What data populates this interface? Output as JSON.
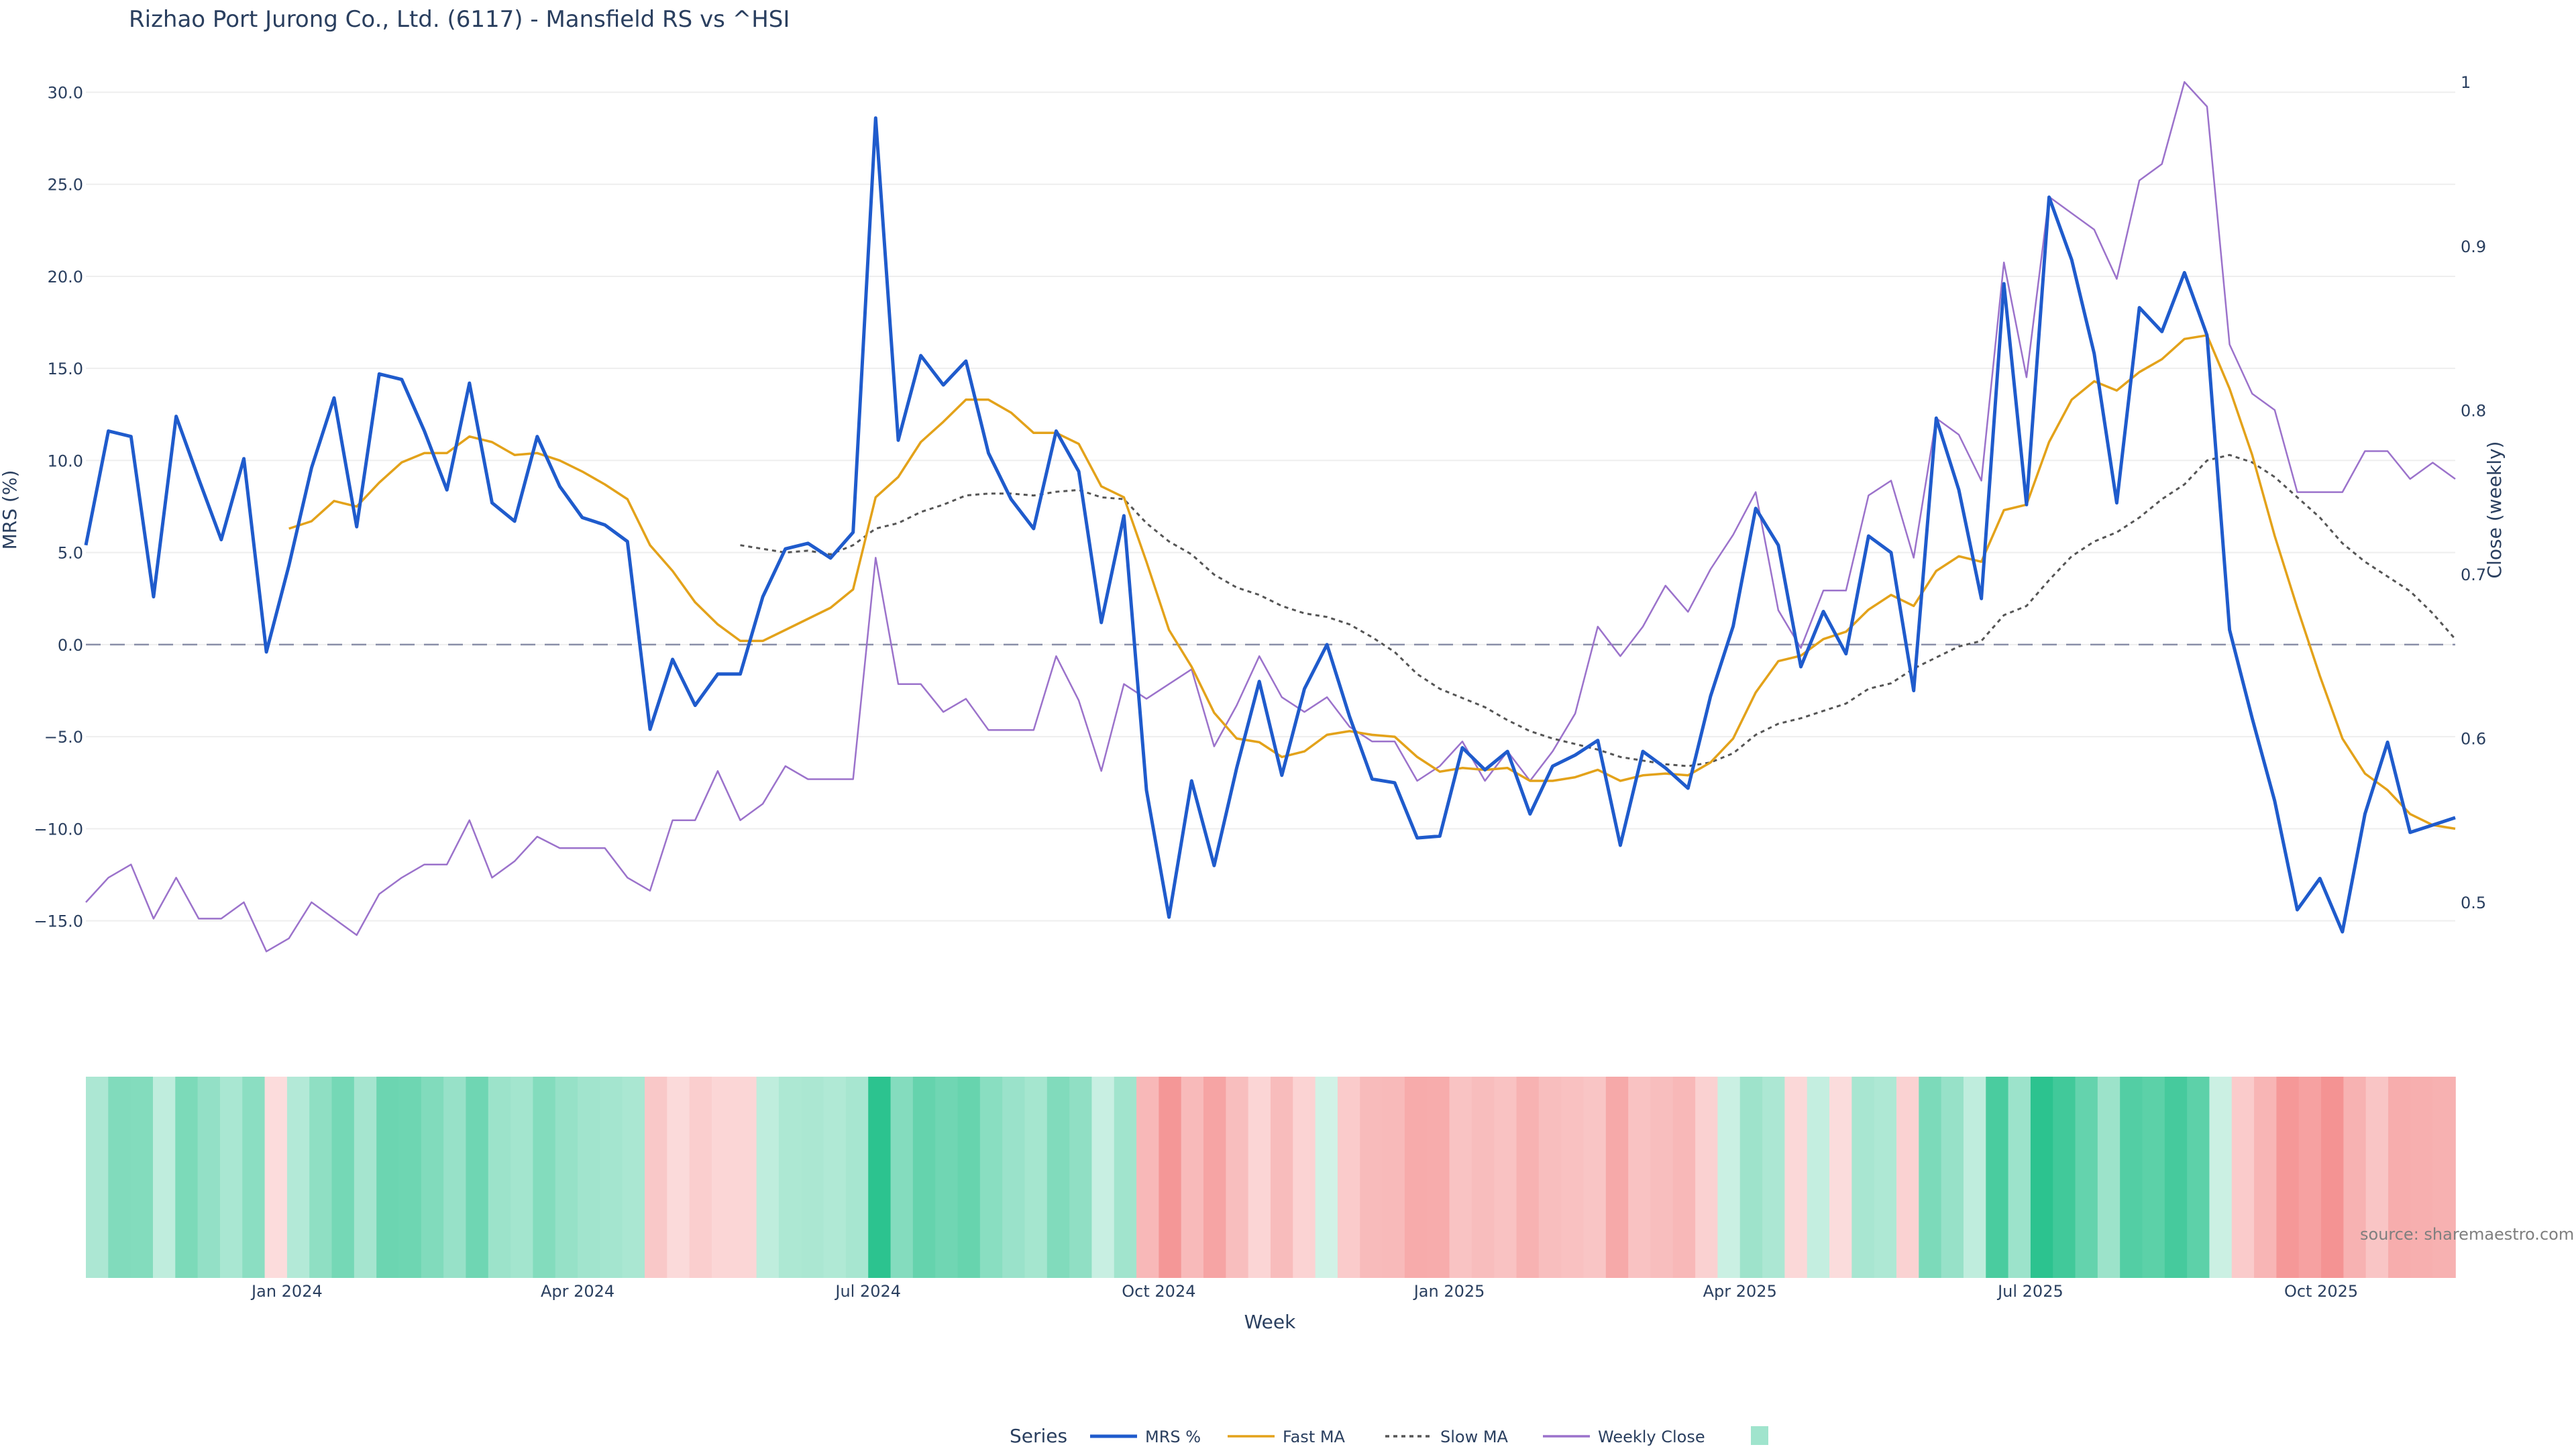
{
  "chart_data": {
    "type": "line",
    "title": "Rizhao Port Jurong Co., Ltd. (6117) - Mansfield RS vs ^HSI",
    "xlabel": "Week",
    "ylabel": "MRS (%)",
    "y2label": "Close (weekly)",
    "ylim": [
      -18.0,
      31.0
    ],
    "y2lim": [
      0.455,
      1.005
    ],
    "yticks": [
      "30.0",
      "25.0",
      "20.0",
      "15.0",
      "10.0",
      "5.0",
      "0.0",
      "−5.0",
      "−10.0",
      "−15.0"
    ],
    "y2ticks": [
      "1",
      "0.9",
      "0.8",
      "0.7",
      "0.6",
      "0.5"
    ],
    "xticks": [
      {
        "label": "Jan 2024",
        "week": 9
      },
      {
        "label": "Apr 2024",
        "week": 22
      },
      {
        "label": "Jul 2024",
        "week": 35
      },
      {
        "label": "Oct 2024",
        "week": 48
      },
      {
        "label": "Jan 2025",
        "week": 61
      },
      {
        "label": "Apr 2025",
        "week": 74
      },
      {
        "label": "Jul 2025",
        "week": 87
      },
      {
        "label": "Oct 2025",
        "week": 100
      }
    ],
    "zero_line": 0,
    "grid": true,
    "legend_position": "bottom",
    "legend_title": "Series",
    "series": [
      {
        "name": "MRS %",
        "color": "#1f5bcc",
        "axis": "y",
        "values": [
          5.4,
          11.6,
          11.3,
          2.6,
          12.4,
          9.0,
          5.7,
          10.1,
          -0.4,
          4.3,
          9.6,
          13.4,
          6.4,
          14.7,
          14.4,
          11.6,
          8.4,
          14.2,
          7.7,
          6.7,
          11.3,
          8.6,
          6.9,
          6.5,
          5.6,
          -4.6,
          -0.8,
          -3.3,
          -1.6,
          -1.6,
          2.6,
          5.2,
          5.5,
          4.7,
          6.1,
          28.6,
          11.1,
          15.7,
          14.1,
          15.4,
          10.4,
          7.9,
          6.3,
          11.6,
          9.4,
          1.2,
          7.0,
          -7.9,
          -14.8,
          -7.4,
          -12.0,
          -6.7,
          -2.0,
          -7.1,
          -2.4,
          0.0,
          -3.9,
          -7.3,
          -7.5,
          -10.5,
          -10.4,
          -5.6,
          -6.8,
          -5.8,
          -9.2,
          -6.6,
          -6.0,
          -5.2,
          -10.9,
          -5.8,
          -6.7,
          -7.8,
          -2.8,
          1.0,
          7.4,
          5.4,
          -1.2,
          1.8,
          -0.5,
          5.9,
          5.0,
          -2.5,
          12.3,
          8.4,
          2.5,
          19.6,
          7.6,
          24.3,
          20.9,
          15.8,
          7.7,
          18.3,
          17.0,
          20.2,
          16.8,
          0.8,
          -4.0,
          -8.5,
          -14.4,
          -12.7,
          -15.6,
          -9.2,
          -5.3,
          -10.2,
          -9.8,
          -9.4
        ]
      },
      {
        "name": "Fast MA",
        "color": "#e3a21a",
        "axis": "y",
        "values": [
          null,
          null,
          null,
          null,
          null,
          null,
          null,
          null,
          null,
          6.3,
          6.7,
          7.8,
          7.5,
          8.8,
          9.9,
          10.4,
          10.4,
          11.3,
          11.0,
          10.3,
          10.4,
          10.0,
          9.4,
          8.7,
          7.9,
          5.4,
          4.0,
          2.3,
          1.1,
          0.2,
          0.2,
          0.8,
          1.4,
          2.0,
          3.0,
          8.0,
          9.1,
          11.0,
          12.1,
          13.3,
          13.3,
          12.6,
          11.5,
          11.5,
          10.9,
          8.6,
          8.0,
          4.5,
          0.8,
          -1.2,
          -3.7,
          -5.1,
          -5.3,
          -6.1,
          -5.8,
          -4.9,
          -4.7,
          -4.9,
          -5.0,
          -6.1,
          -6.9,
          -6.7,
          -6.8,
          -6.7,
          -7.4,
          -7.4,
          -7.2,
          -6.8,
          -7.4,
          -7.1,
          -7.0,
          -7.1,
          -6.4,
          -5.1,
          -2.6,
          -0.9,
          -0.6,
          0.3,
          0.7,
          1.9,
          2.7,
          2.1,
          4.0,
          4.8,
          4.5,
          7.3,
          7.6,
          11.0,
          13.3,
          14.3,
          13.8,
          14.8,
          15.5,
          16.6,
          16.8,
          13.9,
          10.3,
          5.9,
          2.0,
          -1.7,
          -5.1,
          -7.0,
          -7.9,
          -9.2,
          -9.8,
          -10.0
        ]
      },
      {
        "name": "Slow MA",
        "color": "#555555",
        "axis": "y",
        "dash": "6,6",
        "values": [
          null,
          null,
          null,
          null,
          null,
          null,
          null,
          null,
          null,
          null,
          null,
          null,
          null,
          null,
          null,
          null,
          null,
          null,
          null,
          null,
          null,
          null,
          null,
          null,
          null,
          null,
          null,
          null,
          null,
          5.4,
          5.2,
          5.0,
          5.1,
          4.9,
          5.4,
          6.3,
          6.6,
          7.2,
          7.6,
          8.1,
          8.2,
          8.2,
          8.1,
          8.3,
          8.4,
          8.0,
          7.9,
          6.6,
          5.6,
          4.9,
          3.8,
          3.1,
          2.7,
          2.1,
          1.7,
          1.5,
          1.1,
          0.4,
          -0.4,
          -1.6,
          -2.4,
          -2.9,
          -3.4,
          -4.1,
          -4.7,
          -5.1,
          -5.4,
          -5.7,
          -6.1,
          -6.3,
          -6.5,
          -6.6,
          -6.4,
          -5.9,
          -4.9,
          -4.3,
          -4.0,
          -3.6,
          -3.2,
          -2.4,
          -2.1,
          -1.3,
          -0.7,
          -0.1,
          0.2,
          1.6,
          2.1,
          3.5,
          4.8,
          5.6,
          6.1,
          6.9,
          7.9,
          8.7,
          10.0,
          10.3,
          9.9,
          9.1,
          8.0,
          6.9,
          5.5,
          4.5,
          3.7,
          2.9,
          1.7,
          0.3
        ]
      },
      {
        "name": "Weekly Close",
        "color": "#9b72cb",
        "axis": "y2",
        "values": [
          0.5,
          0.515,
          0.523,
          0.49,
          0.515,
          0.49,
          0.49,
          0.5,
          0.47,
          0.478,
          0.5,
          0.49,
          0.48,
          0.505,
          0.515,
          0.523,
          0.523,
          0.55,
          0.515,
          0.525,
          0.54,
          0.533,
          0.533,
          0.533,
          0.515,
          0.507,
          0.55,
          0.55,
          0.58,
          0.55,
          0.56,
          0.583,
          0.575,
          0.575,
          0.575,
          0.71,
          0.633,
          0.633,
          0.616,
          0.624,
          0.605,
          0.605,
          0.605,
          0.65,
          0.623,
          0.58,
          0.633,
          0.624,
          0.633,
          0.642,
          0.595,
          0.62,
          0.65,
          0.625,
          0.616,
          0.625,
          0.607,
          0.598,
          0.598,
          0.574,
          0.583,
          0.598,
          0.574,
          0.592,
          0.574,
          0.592,
          0.615,
          0.668,
          0.65,
          0.668,
          0.693,
          0.677,
          0.703,
          0.724,
          0.75,
          0.678,
          0.655,
          0.69,
          0.69,
          0.748,
          0.757,
          0.71,
          0.795,
          0.785,
          0.757,
          0.89,
          0.82,
          0.93,
          0.92,
          0.91,
          0.88,
          0.94,
          0.95,
          1.0,
          0.985,
          0.84,
          0.81,
          0.8,
          0.75,
          0.75,
          0.75,
          0.775,
          0.775,
          0.758,
          0.768,
          0.758
        ]
      }
    ],
    "heatmap_strip": {
      "description_values": "MRS % per week encoded as colour",
      "positive_color": "#2cc38f",
      "negative_color": "#f06a6a"
    },
    "source": "source: sharemaestro.com"
  }
}
